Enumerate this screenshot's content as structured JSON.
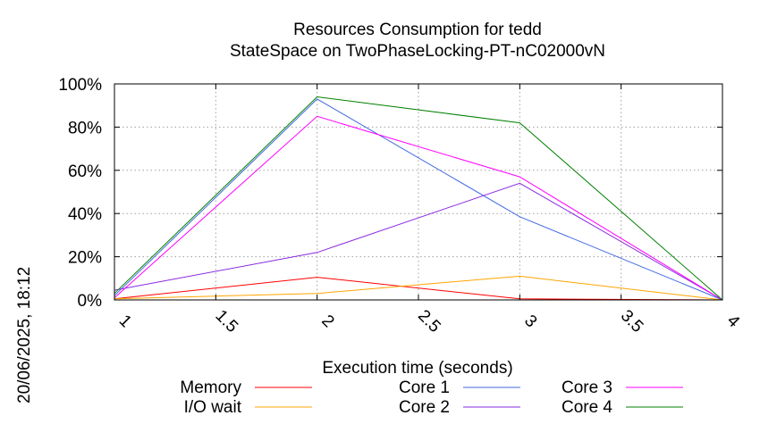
{
  "chart_data": {
    "type": "line",
    "title": "Resources Consumption for tedd",
    "subtitle": "StateSpace on TwoPhaseLocking-PT-nC02000vN",
    "xlabel": "Execution time (seconds)",
    "ylabel": "",
    "xlim": [
      1,
      4
    ],
    "ylim": [
      0,
      100
    ],
    "x_ticks": [
      1,
      1.5,
      2,
      2.5,
      3,
      3.5,
      4
    ],
    "x_tick_labels": [
      "1",
      "1.5",
      "2",
      "2.5",
      "3",
      "3.5",
      "4"
    ],
    "y_ticks": [
      0,
      20,
      40,
      60,
      80,
      100
    ],
    "y_tick_labels": [
      "0%",
      "20%",
      "40%",
      "60%",
      "80%",
      "100%"
    ],
    "grid": true,
    "legend_position": "bottom",
    "x": [
      1,
      2,
      3,
      4
    ],
    "series": [
      {
        "name": "Memory",
        "color": "#ff0000",
        "values": [
          0.5,
          10.5,
          0.5,
          0
        ]
      },
      {
        "name": "I/O wait",
        "color": "#ffa500",
        "values": [
          0.5,
          3,
          11,
          0
        ]
      },
      {
        "name": "Core 1",
        "color": "#4169e1",
        "values": [
          2,
          93,
          38.5,
          0
        ]
      },
      {
        "name": "Core 2",
        "color": "#8a2be2",
        "values": [
          4.5,
          22,
          54,
          0
        ]
      },
      {
        "name": "Core 3",
        "color": "#ff00ff",
        "values": [
          1,
          85,
          57,
          0
        ]
      },
      {
        "name": "Core 4",
        "color": "#008000",
        "values": [
          3,
          94,
          82,
          0
        ]
      }
    ]
  },
  "timestamp": "20/06/2025, 18:12"
}
